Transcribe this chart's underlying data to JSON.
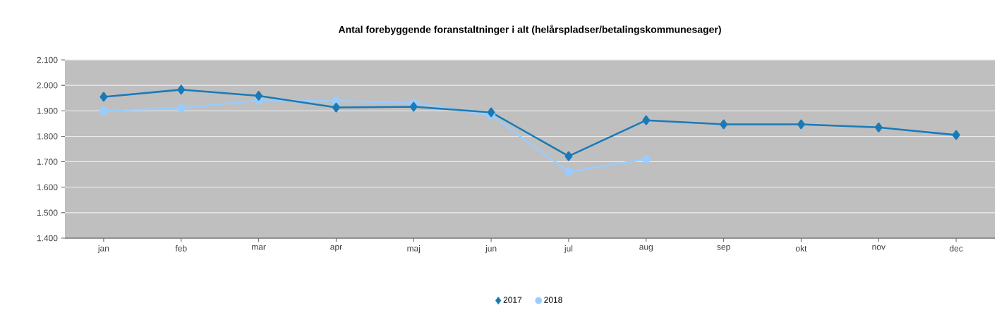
{
  "chart_data": {
    "type": "line",
    "title": "Antal forebyggende foranstaltninger i alt (helårspladser/betalingskommunesager)",
    "categories": [
      "jan",
      "feb",
      "mar",
      "apr",
      "maj",
      "jun",
      "jul",
      "aug",
      "sep",
      "okt",
      "nov",
      "dec"
    ],
    "series": [
      {
        "name": "2017",
        "color": "#1a7ab8",
        "marker": "diamond",
        "values": [
          1955,
          1983,
          1959,
          1913,
          1916,
          1894,
          1722,
          1863,
          1847,
          1847,
          1835,
          1805
        ]
      },
      {
        "name": "2018",
        "color": "#99ccff",
        "marker": "circle",
        "values": [
          1899,
          1911,
          1941,
          1939,
          1931,
          1883,
          1661,
          1710,
          null,
          null,
          null,
          null
        ]
      }
    ],
    "ylim": [
      1400,
      2100
    ],
    "yticks": [
      {
        "value": 1400,
        "label": "1.400"
      },
      {
        "value": 1500,
        "label": "1.500"
      },
      {
        "value": 1600,
        "label": "1.600"
      },
      {
        "value": 1700,
        "label": "1.700"
      },
      {
        "value": 1800,
        "label": "1.800"
      },
      {
        "value": 1900,
        "label": "1.900"
      },
      {
        "value": 2000,
        "label": "2.000"
      },
      {
        "value": 2100,
        "label": "2.100"
      }
    ],
    "grid": "y",
    "legend": "bottom",
    "line_style": "solid"
  }
}
